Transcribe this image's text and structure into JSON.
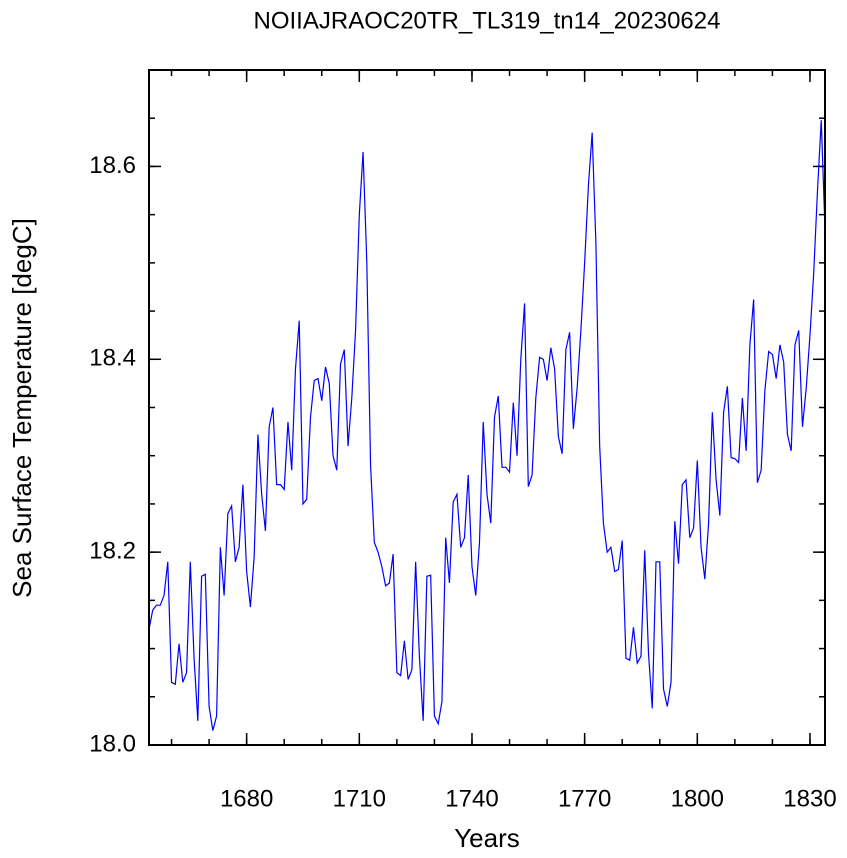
{
  "chart_data": {
    "type": "line",
    "title": "NOIIAJRAOC20TR_TL319_tn14_20230624",
    "x_label": "Years",
    "y_label": "Sea Surface Temperature [degC]",
    "color": "#0000ff",
    "xlim": [
      1654,
      1834
    ],
    "ylim": [
      18.0,
      18.7
    ],
    "xticks": [
      1680,
      1710,
      1740,
      1770,
      1800,
      1830
    ],
    "yticks": [
      {
        "value": 18.0,
        "label": "18.0"
      },
      18.2,
      18.4,
      18.6
    ],
    "x": [
      1654,
      1655,
      1656,
      1657,
      1658,
      1659,
      1660,
      1661,
      1662,
      1663,
      1664,
      1665,
      1666,
      1667,
      1668,
      1669,
      1670,
      1671,
      1672,
      1673,
      1674,
      1675,
      1676,
      1677,
      1678,
      1679,
      1680,
      1681,
      1682,
      1683,
      1684,
      1685,
      1686,
      1687,
      1688,
      1689,
      1690,
      1691,
      1692,
      1693,
      1694,
      1695,
      1696,
      1697,
      1698,
      1699,
      1700,
      1701,
      1702,
      1703,
      1704,
      1705,
      1706,
      1707,
      1708,
      1709,
      1710,
      1711,
      1712,
      1713,
      1714,
      1715,
      1716,
      1717,
      1718,
      1719,
      1720,
      1721,
      1722,
      1723,
      1724,
      1725,
      1726,
      1727,
      1728,
      1729,
      1730,
      1731,
      1732,
      1733,
      1734,
      1735,
      1736,
      1737,
      1738,
      1739,
      1740,
      1741,
      1742,
      1743,
      1744,
      1745,
      1746,
      1747,
      1748,
      1749,
      1750,
      1751,
      1752,
      1753,
      1754,
      1755,
      1756,
      1757,
      1758,
      1759,
      1760,
      1761,
      1762,
      1763,
      1764,
      1765,
      1766,
      1767,
      1768,
      1769,
      1770,
      1771,
      1772,
      1773,
      1774,
      1775,
      1776,
      1777,
      1778,
      1779,
      1780,
      1781,
      1782,
      1783,
      1784,
      1785,
      1786,
      1787,
      1788,
      1789,
      1790,
      1791,
      1792,
      1793,
      1794,
      1795,
      1796,
      1797,
      1798,
      1799,
      1800,
      1801,
      1802,
      1803,
      1804,
      1805,
      1806,
      1807,
      1808,
      1809,
      1810,
      1811,
      1812,
      1813,
      1814,
      1815,
      1816,
      1817,
      1818,
      1819,
      1820,
      1821,
      1822,
      1823,
      1824,
      1825,
      1826,
      1827,
      1828,
      1829,
      1830,
      1831,
      1832,
      1833,
      1834
    ],
    "values": [
      18.12,
      18.14,
      18.145,
      18.145,
      18.155,
      18.19,
      18.065,
      18.063,
      18.105,
      18.065,
      18.075,
      18.19,
      18.09,
      18.025,
      18.175,
      18.177,
      18.04,
      18.015,
      18.03,
      18.205,
      18.155,
      18.24,
      18.248,
      18.19,
      18.205,
      18.27,
      18.18,
      18.143,
      18.195,
      18.322,
      18.26,
      18.222,
      18.33,
      18.35,
      18.27,
      18.27,
      18.265,
      18.335,
      18.285,
      18.39,
      18.44,
      18.25,
      18.255,
      18.34,
      18.378,
      18.38,
      18.357,
      18.392,
      18.375,
      18.3,
      18.285,
      18.395,
      18.41,
      18.31,
      18.36,
      18.43,
      18.55,
      18.615,
      18.5,
      18.29,
      18.21,
      18.2,
      18.185,
      18.165,
      18.168,
      18.198,
      18.075,
      18.072,
      18.108,
      18.068,
      18.078,
      18.19,
      18.092,
      18.025,
      18.175,
      18.176,
      18.03,
      18.022,
      18.045,
      18.215,
      18.168,
      18.252,
      18.26,
      18.205,
      18.215,
      18.28,
      18.185,
      18.155,
      18.21,
      18.335,
      18.26,
      18.23,
      18.34,
      18.362,
      18.288,
      18.288,
      18.283,
      18.355,
      18.3,
      18.4,
      18.458,
      18.268,
      18.28,
      18.36,
      18.402,
      18.4,
      18.378,
      18.412,
      18.39,
      18.32,
      18.302,
      18.41,
      18.428,
      18.328,
      18.37,
      18.43,
      18.5,
      18.58,
      18.635,
      18.52,
      18.31,
      18.23,
      18.2,
      18.205,
      18.18,
      18.182,
      18.212,
      18.09,
      18.088,
      18.122,
      18.085,
      18.092,
      18.202,
      18.095,
      18.038,
      18.19,
      18.19,
      18.058,
      18.04,
      18.065,
      18.232,
      18.188,
      18.27,
      18.275,
      18.215,
      18.225,
      18.295,
      18.205,
      18.172,
      18.23,
      18.345,
      18.275,
      18.238,
      18.345,
      18.372,
      18.298,
      18.297,
      18.293,
      18.36,
      18.305,
      18.415,
      18.462,
      18.272,
      18.285,
      18.368,
      18.408,
      18.405,
      18.38,
      18.415,
      18.397,
      18.322,
      18.305,
      18.415,
      18.43,
      18.33,
      18.37,
      18.425,
      18.49,
      18.575,
      18.648,
      18.535
    ]
  }
}
